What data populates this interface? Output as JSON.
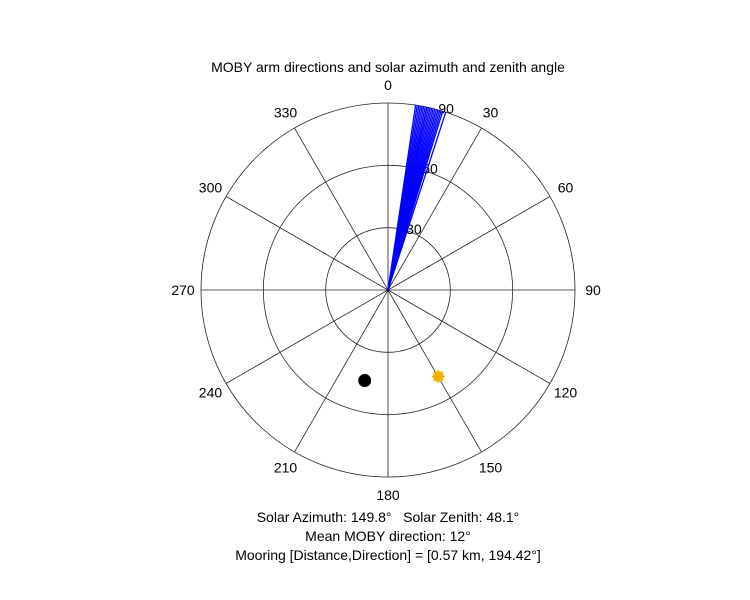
{
  "chart_data": {
    "type": "polar",
    "title": "MOBY arm directions and solar azimuth and zenith angle",
    "theta_direction": "clockwise",
    "theta_zero": "top",
    "theta_ticks": [
      0,
      30,
      60,
      90,
      120,
      150,
      180,
      210,
      240,
      270,
      300,
      330
    ],
    "theta_tick_labels": [
      "0",
      "30",
      "60",
      "90",
      "120",
      "150",
      "180",
      "210",
      "240",
      "270",
      "300",
      "330"
    ],
    "r_ticks": [
      30,
      60,
      90
    ],
    "r_tick_labels": [
      "30",
      "60",
      "90"
    ],
    "rlim": [
      0,
      90
    ],
    "grid": true,
    "series": [
      {
        "kind": "arm_lines",
        "color": "#0000ff",
        "r": 90,
        "theta_deg": [
          8.5,
          9,
          9.5,
          10,
          10.5,
          11,
          11.5,
          12,
          12,
          12.5,
          13,
          13.5,
          14,
          14.5,
          15,
          15.5,
          16,
          16.5,
          17,
          18
        ]
      },
      {
        "kind": "solar_position",
        "color": "#ffbf00",
        "marker": "star-filled-circle",
        "theta_deg": 149.8,
        "r": 48.1
      },
      {
        "kind": "mooring_position",
        "color": "#000000",
        "marker": "filled-circle",
        "theta_deg": 194.42,
        "r": 45
      }
    ],
    "annotations": {
      "line1": "Solar Azimuth: 149.8°   Solar Zenith: 48.1°",
      "line2": "Mean MOBY direction: 12°",
      "line3": "Mooring [Distance,Direction] = [0.57 km, 194.42°]"
    }
  }
}
